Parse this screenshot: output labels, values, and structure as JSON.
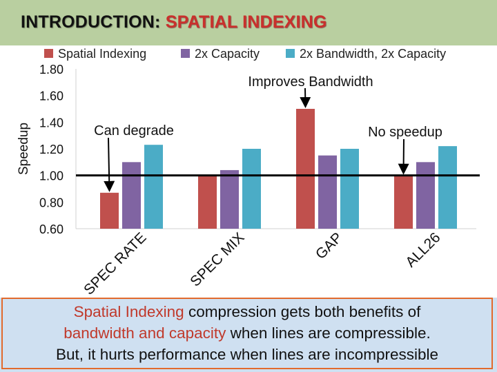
{
  "header": {
    "title_prefix": "INTRODUCTION:",
    "title_highlight": "SPATIAL INDEXING"
  },
  "chart_data": {
    "type": "bar",
    "ylabel": "Speedup",
    "ylim": [
      0.6,
      1.8
    ],
    "yticks": [
      "0.60",
      "0.80",
      "1.00",
      "1.20",
      "1.40",
      "1.60",
      "1.80"
    ],
    "categories": [
      "SPEC RATE",
      "SPEC MIX",
      "GAP",
      "ALL26"
    ],
    "series": [
      {
        "name": "Spatial Indexing",
        "color": "#c0504d",
        "values": [
          0.87,
          1.0,
          1.5,
          1.0
        ]
      },
      {
        "name": "2x Capacity",
        "color": "#8064a2",
        "values": [
          1.1,
          1.04,
          1.15,
          1.1
        ]
      },
      {
        "name": "2x Bandwidth, 2x Capacity",
        "color": "#4bacc6",
        "values": [
          1.23,
          1.2,
          1.2,
          1.22
        ]
      }
    ],
    "baseline": 1.0,
    "annotations": [
      {
        "text": "Improves Bandwidth",
        "category": "GAP",
        "series": "Spatial Indexing"
      },
      {
        "text": "Can degrade",
        "category": "SPEC RATE",
        "series": "Spatial Indexing"
      },
      {
        "text": "No speedup",
        "category": "ALL26",
        "series": "Spatial Indexing"
      }
    ],
    "legend_position": "top"
  },
  "footer": {
    "l1_red": "Spatial Indexing",
    "l1_rest": " compression gets both benefits of",
    "l2_red": "bandwidth and capacity",
    "l2_rest": " when lines are compressible.",
    "l3": "But, it hurts performance when lines are incompressible"
  }
}
